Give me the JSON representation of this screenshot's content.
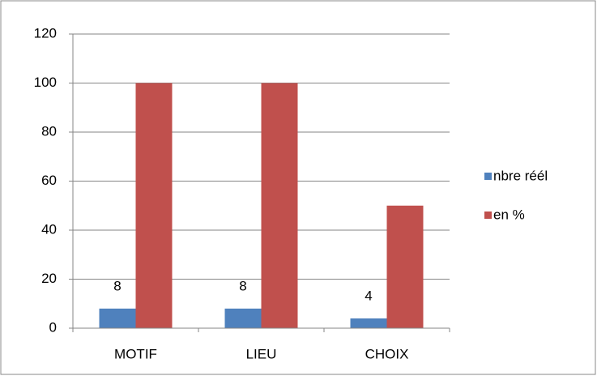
{
  "chart_data": {
    "type": "bar",
    "categories": [
      "MOTIF",
      "LIEU",
      "CHOIX"
    ],
    "series": [
      {
        "name": "nbre réél",
        "color": "#4f81bd",
        "values": [
          8,
          8,
          4
        ],
        "data_labels": true
      },
      {
        "name": "en %",
        "color": "#c0504d",
        "values": [
          100,
          100,
          50
        ]
      }
    ],
    "ylim": [
      0,
      120
    ],
    "yticks": [
      0,
      20,
      40,
      60,
      80,
      100,
      120
    ],
    "grid": true,
    "legend": "right"
  }
}
